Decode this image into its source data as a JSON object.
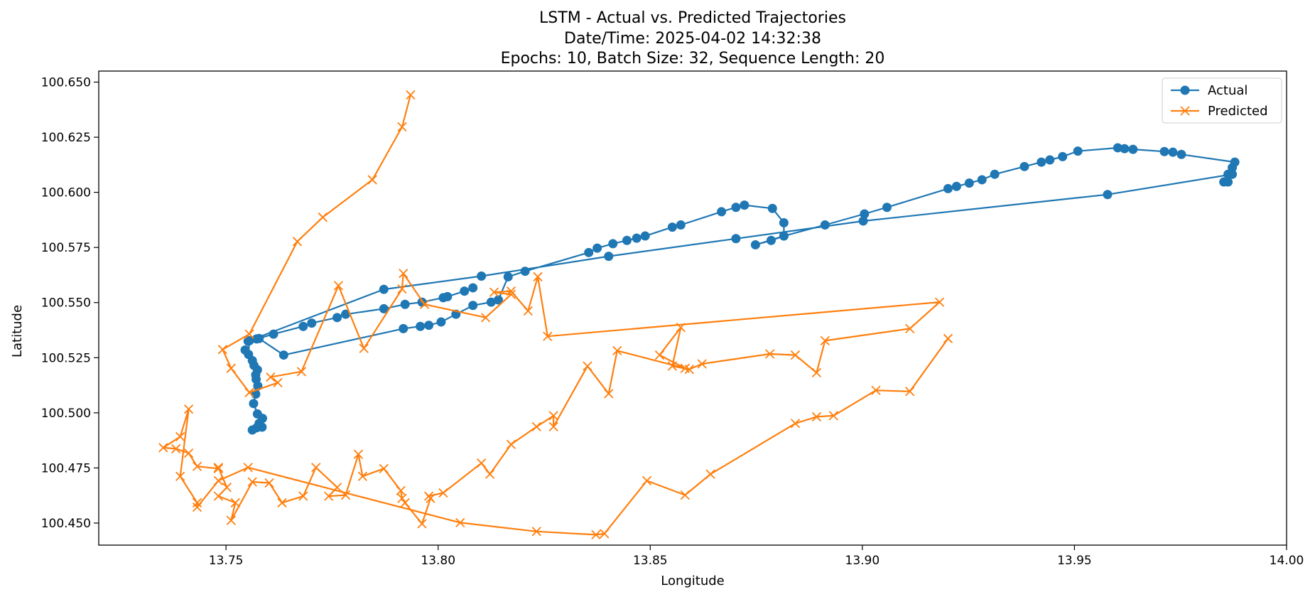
{
  "chart_data": {
    "type": "line",
    "title_lines": [
      "LSTM - Actual vs. Predicted Trajectories",
      "Date/Time: 2025-04-02 14:32:38",
      "Epochs: 10, Batch Size: 32, Sequence Length: 20"
    ],
    "xlabel": "Longitude",
    "ylabel": "Latitude",
    "xlim": [
      13.72,
      14.0
    ],
    "ylim": [
      100.44,
      100.655
    ],
    "xticks": [
      "13.75",
      "13.80",
      "13.85",
      "13.90",
      "13.95",
      "14.00"
    ],
    "yticks": [
      "100.450",
      "100.475",
      "100.500",
      "100.525",
      "100.550",
      "100.575",
      "100.600",
      "100.625",
      "100.650"
    ],
    "grid": false,
    "legend_position": "top-right",
    "series": [
      {
        "name": "Actual",
        "color": "#1f77b4",
        "marker": "circle",
        "x": [
          13.7562,
          13.7572,
          13.7585,
          13.7578,
          13.7586,
          13.7574,
          13.7565,
          13.757,
          13.7575,
          13.7571,
          13.757,
          13.7574,
          13.7566,
          13.7562,
          13.7545,
          13.7553,
          13.7555,
          13.7578,
          13.7636,
          13.7918,
          13.7958,
          13.7978,
          13.8007,
          13.8042,
          13.8082,
          13.8125,
          13.8142,
          13.8165,
          13.8205,
          13.8355,
          13.8375,
          13.8412,
          13.8445,
          13.8468,
          13.8488,
          13.8552,
          13.8572,
          13.8668,
          13.8702,
          13.8722,
          13.8788,
          13.8815,
          13.8815,
          13.8785,
          13.8748,
          13.8815,
          13.8912,
          13.9005,
          13.9058,
          13.9202,
          13.9222,
          13.9252,
          13.9282,
          13.9312,
          13.9382,
          13.9422,
          13.9442,
          13.9472,
          13.9508,
          13.9602,
          13.9618,
          13.9638,
          13.9712,
          13.9732,
          13.9752,
          13.9878,
          13.9872,
          13.9862,
          13.9852,
          13.9862,
          13.9872,
          13.9578,
          13.9002,
          13.8702,
          13.8402,
          13.8102,
          13.7872,
          13.7552,
          13.7572,
          13.7612,
          13.7682,
          13.7702,
          13.7762,
          13.7782,
          13.7872,
          13.7922,
          13.7962,
          13.8012,
          13.8022,
          13.8062,
          13.8082
        ],
        "y": [
          100.4922,
          100.4932,
          100.4935,
          100.4952,
          100.4975,
          100.4995,
          100.5042,
          100.5085,
          100.5122,
          100.5152,
          100.5172,
          100.5195,
          100.5215,
          100.5237,
          100.5285,
          100.5265,
          100.5327,
          100.5337,
          100.5262,
          100.5382,
          100.5392,
          100.5397,
          100.5412,
          100.5447,
          100.5487,
          100.5502,
          100.5512,
          100.5617,
          100.5642,
          100.5727,
          100.5747,
          100.5767,
          100.5782,
          100.5792,
          100.5802,
          100.5842,
          100.5852,
          100.5912,
          100.5932,
          100.5942,
          100.5927,
          100.5862,
          100.5802,
          100.5782,
          100.5762,
          100.5802,
          100.5852,
          100.5902,
          100.5932,
          100.6017,
          100.6027,
          100.6042,
          100.6057,
          100.6082,
          100.6117,
          100.6137,
          100.6147,
          100.6162,
          100.6187,
          100.6202,
          100.6198,
          100.6195,
          100.6185,
          100.6182,
          100.6172,
          100.6137,
          100.6112,
          100.6082,
          100.6047,
          100.6047,
          100.6082,
          100.599,
          100.587,
          100.579,
          100.571,
          100.562,
          100.556,
          100.5325,
          100.5335,
          100.5357,
          100.5392,
          100.5407,
          100.5432,
          100.5447,
          100.5472,
          100.5492,
          100.5502,
          100.5522,
          100.5527,
          100.5552,
          100.5567
        ]
      },
      {
        "name": "Predicted",
        "color": "#ff7f0e",
        "marker": "x",
        "x": [
          13.7935,
          13.7915,
          13.7845,
          13.7728,
          13.7668,
          13.7555,
          13.7492,
          13.7512,
          13.7555,
          13.7622,
          13.7605,
          13.7678,
          13.7765,
          13.7825,
          13.7915,
          13.7918,
          13.7968,
          13.8112,
          13.8172,
          13.8132,
          13.8172,
          13.8212,
          13.8235,
          13.8258,
          13.9182,
          13.9112,
          13.8912,
          13.8892,
          13.8842,
          13.8782,
          13.8622,
          13.8592,
          13.8552,
          13.8572,
          13.8522,
          13.8582,
          13.8422,
          13.8402,
          13.8352,
          13.8272,
          13.8272,
          13.8232,
          13.8172,
          13.8122,
          13.8102,
          13.8012,
          13.7978,
          13.7982,
          13.7962,
          13.7922,
          13.7915,
          13.7912,
          13.7872,
          13.7822,
          13.7812,
          13.7782,
          13.7742,
          13.7762,
          13.7712,
          13.7682,
          13.7632,
          13.7602,
          13.7562,
          13.7512,
          13.7522,
          13.7482,
          13.7502,
          13.7482,
          13.7482,
          13.7432,
          13.7412,
          13.7382,
          13.7352,
          13.7392,
          13.7412,
          13.7392,
          13.7432,
          13.7432,
          13.7482,
          13.7552,
          13.8052,
          13.8232,
          13.8372,
          13.8392,
          13.8492,
          13.8582,
          13.8642,
          13.8842,
          13.8892,
          13.8932,
          13.9032,
          13.9112,
          13.9202
        ],
        "y": [
          100.6442,
          100.6297,
          100.6057,
          100.5887,
          100.5777,
          100.5357,
          100.5287,
          100.5202,
          100.5092,
          100.5137,
          100.5162,
          100.5187,
          100.5577,
          100.5292,
          100.5562,
          100.5632,
          100.5492,
          100.5432,
          100.5537,
          100.5547,
          100.5552,
          100.5462,
          100.5617,
          100.5347,
          100.5502,
          100.5382,
          100.5327,
          100.5182,
          100.5262,
          100.5267,
          100.5222,
          100.5197,
          100.5212,
          100.5387,
          100.5262,
          100.5202,
          100.5282,
          100.5087,
          100.5212,
          100.4937,
          100.4987,
          100.4937,
          100.4857,
          100.4722,
          100.4772,
          100.4637,
          100.4622,
          100.4612,
          100.4497,
          100.4592,
          100.4612,
          100.4647,
          100.4747,
          100.4712,
          100.4812,
          100.4627,
          100.4622,
          100.4662,
          100.4752,
          100.4622,
          100.4592,
          100.4682,
          100.4687,
          100.4512,
          100.4592,
          100.4622,
          100.4662,
          100.4752,
          100.4747,
          100.4757,
          100.4817,
          100.4837,
          100.4842,
          100.4892,
          100.5017,
          100.4712,
          100.4592,
          100.4572,
          100.4692,
          100.4752,
          100.4502,
          100.4462,
          100.4447,
          100.4452,
          100.4692,
          100.4627,
          100.4722,
          100.4952,
          100.4982,
          100.4987,
          100.5102,
          100.5097,
          100.5337
        ]
      }
    ]
  }
}
